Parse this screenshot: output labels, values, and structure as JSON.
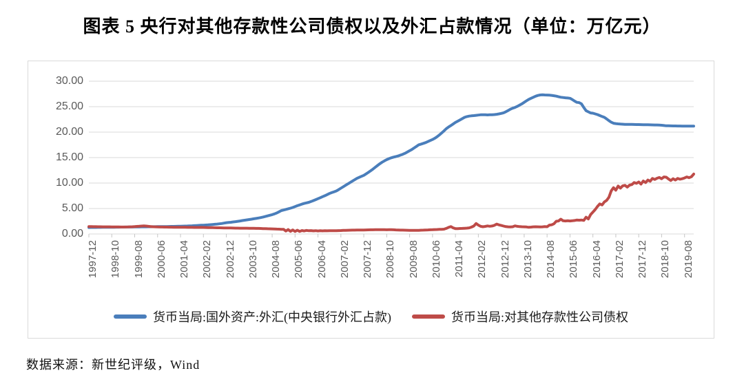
{
  "title": "图表 5  央行对其他存款性公司债权以及外汇占款情况（单位：万亿元）",
  "source_note": "数据来源：新世纪评级，Wind",
  "colors": {
    "fx_line": "#4a7ebb",
    "claims_line": "#be4b48",
    "gridline": "#d9d9d9",
    "tick": "#c6c6c6",
    "axis_text": "#595959",
    "panel_border": "#d9d9d9",
    "text": "#000000"
  },
  "chart_data": {
    "type": "line",
    "title": "央行对其他存款性公司债权以及外汇占款情况",
    "unit": "万亿元",
    "grid": true,
    "legend_position": "bottom",
    "y_axis": {
      "min": 0,
      "max": 30,
      "step": 5,
      "tick_labels": [
        "30.00",
        "25.00",
        "20.00",
        "15.00",
        "10.00",
        "5.00",
        "0.00"
      ]
    },
    "x_axis": {
      "interval": "monthly",
      "start": "1997-12",
      "end": "2019-12",
      "tick_every_n_points": 10,
      "tick_labels": [
        "1997-12",
        "1998-10",
        "1999-08",
        "2000-06",
        "2001-04",
        "2002-02",
        "2002-12",
        "2003-10",
        "2004-08",
        "2005-06",
        "2006-04",
        "2007-02",
        "2007-12",
        "2008-10",
        "2009-08",
        "2010-06",
        "2011-04",
        "2012-02",
        "2012-12",
        "2013-10",
        "2014-08",
        "2015-06",
        "2016-04",
        "2017-02",
        "2017-12",
        "2018-10",
        "2019-08"
      ]
    },
    "series": [
      {
        "name": "货币当局:国外资产:外汇(中央银行外汇占款)",
        "color": "#4a7ebb",
        "values": [
          1.27,
          1.28,
          1.29,
          1.29,
          1.3,
          1.3,
          1.31,
          1.31,
          1.32,
          1.32,
          1.33,
          1.33,
          1.34,
          1.34,
          1.35,
          1.35,
          1.36,
          1.36,
          1.37,
          1.37,
          1.38,
          1.38,
          1.39,
          1.4,
          1.41,
          1.41,
          1.42,
          1.42,
          1.43,
          1.43,
          1.44,
          1.44,
          1.45,
          1.45,
          1.46,
          1.47,
          1.48,
          1.49,
          1.5,
          1.51,
          1.52,
          1.54,
          1.55,
          1.57,
          1.59,
          1.61,
          1.63,
          1.66,
          1.69,
          1.71,
          1.73,
          1.76,
          1.79,
          1.82,
          1.86,
          1.9,
          1.95,
          2.0,
          2.06,
          2.13,
          2.21,
          2.25,
          2.3,
          2.36,
          2.42,
          2.49,
          2.56,
          2.63,
          2.7,
          2.77,
          2.84,
          2.91,
          2.98,
          3.05,
          3.13,
          3.22,
          3.32,
          3.43,
          3.55,
          3.67,
          3.8,
          3.94,
          4.12,
          4.35,
          4.59,
          4.7,
          4.82,
          4.95,
          5.07,
          5.2,
          5.38,
          5.55,
          5.7,
          5.86,
          6.0,
          6.11,
          6.21,
          6.38,
          6.56,
          6.75,
          6.93,
          7.12,
          7.32,
          7.52,
          7.73,
          7.95,
          8.12,
          8.28,
          8.44,
          8.7,
          8.98,
          9.27,
          9.55,
          9.83,
          10.1,
          10.38,
          10.65,
          10.92,
          11.12,
          11.32,
          11.52,
          11.8,
          12.1,
          12.42,
          12.75,
          13.1,
          13.45,
          13.8,
          14.1,
          14.35,
          14.6,
          14.8,
          14.96,
          15.1,
          15.2,
          15.32,
          15.48,
          15.65,
          15.85,
          16.1,
          16.35,
          16.6,
          16.9,
          17.2,
          17.52,
          17.65,
          17.8,
          17.95,
          18.15,
          18.35,
          18.55,
          18.8,
          19.1,
          19.45,
          19.85,
          20.25,
          20.68,
          21.0,
          21.3,
          21.6,
          21.9,
          22.15,
          22.4,
          22.65,
          22.9,
          23.05,
          23.15,
          23.2,
          23.24,
          23.3,
          23.35,
          23.4,
          23.42,
          23.4,
          23.38,
          23.4,
          23.42,
          23.45,
          23.5,
          23.58,
          23.67,
          23.8,
          24.0,
          24.25,
          24.5,
          24.7,
          24.85,
          25.05,
          25.3,
          25.55,
          25.85,
          26.15,
          26.43,
          26.65,
          26.85,
          27.05,
          27.2,
          27.3,
          27.32,
          27.3,
          27.28,
          27.25,
          27.22,
          27.15,
          27.07,
          26.95,
          26.85,
          26.8,
          26.75,
          26.7,
          26.65,
          26.41,
          26.1,
          25.85,
          25.8,
          25.56,
          24.85,
          24.21,
          23.98,
          23.77,
          23.71,
          23.58,
          23.45,
          23.26,
          23.07,
          22.9,
          22.6,
          22.26,
          21.94,
          21.74,
          21.68,
          21.62,
          21.58,
          21.55,
          21.53,
          21.52,
          21.51,
          21.51,
          21.5,
          21.49,
          21.48,
          21.47,
          21.46,
          21.45,
          21.44,
          21.43,
          21.42,
          21.41,
          21.4,
          21.38,
          21.35,
          21.3,
          21.25,
          21.24,
          21.23,
          21.22,
          21.21,
          21.2,
          21.2,
          21.19,
          21.19,
          21.18,
          21.18,
          21.17,
          21.17
        ]
      },
      {
        "name": "货币当局:对其他存款性公司债权",
        "color": "#be4b48",
        "values": [
          1.44,
          1.44,
          1.43,
          1.43,
          1.42,
          1.42,
          1.41,
          1.41,
          1.4,
          1.4,
          1.39,
          1.39,
          1.38,
          1.38,
          1.37,
          1.37,
          1.36,
          1.38,
          1.4,
          1.42,
          1.45,
          1.48,
          1.52,
          1.56,
          1.58,
          1.55,
          1.5,
          1.46,
          1.42,
          1.4,
          1.38,
          1.37,
          1.36,
          1.35,
          1.35,
          1.34,
          1.34,
          1.33,
          1.33,
          1.32,
          1.32,
          1.31,
          1.31,
          1.3,
          1.3,
          1.3,
          1.29,
          1.29,
          1.29,
          1.3,
          1.28,
          1.27,
          1.26,
          1.25,
          1.24,
          1.23,
          1.22,
          1.21,
          1.2,
          1.19,
          1.18,
          1.18,
          1.17,
          1.16,
          1.15,
          1.15,
          1.14,
          1.14,
          1.13,
          1.13,
          1.12,
          1.12,
          1.11,
          1.1,
          1.09,
          1.08,
          1.06,
          1.05,
          1.03,
          1.02,
          1.0,
          0.98,
          0.96,
          0.94,
          0.92,
          0.9,
          0.58,
          0.86,
          0.52,
          0.8,
          0.48,
          0.74,
          0.5,
          0.68,
          0.6,
          0.7,
          0.64,
          0.66,
          0.61,
          0.65,
          0.6,
          0.63,
          0.61,
          0.64,
          0.62,
          0.65,
          0.63,
          0.64,
          0.64,
          0.66,
          0.68,
          0.7,
          0.72,
          0.73,
          0.74,
          0.75,
          0.76,
          0.77,
          0.78,
          0.78,
          0.79,
          0.8,
          0.81,
          0.82,
          0.83,
          0.84,
          0.84,
          0.85,
          0.84,
          0.84,
          0.83,
          0.84,
          0.84,
          0.82,
          0.8,
          0.78,
          0.76,
          0.75,
          0.74,
          0.73,
          0.72,
          0.72,
          0.71,
          0.72,
          0.72,
          0.74,
          0.76,
          0.78,
          0.8,
          0.82,
          0.84,
          0.86,
          0.88,
          0.9,
          0.92,
          0.94,
          1.1,
          1.3,
          1.45,
          1.2,
          1.05,
          1.06,
          1.08,
          1.1,
          1.12,
          1.15,
          1.2,
          1.35,
          1.55,
          2.05,
          1.75,
          1.5,
          1.42,
          1.48,
          1.58,
          1.52,
          1.57,
          1.7,
          1.95,
          1.78,
          1.67,
          1.55,
          1.45,
          1.4,
          1.38,
          1.42,
          1.6,
          1.5,
          1.45,
          1.42,
          1.4,
          1.38,
          1.31,
          1.35,
          1.4,
          1.42,
          1.4,
          1.38,
          1.4,
          1.45,
          1.42,
          1.75,
          1.8,
          2.0,
          2.5,
          2.55,
          2.9,
          2.6,
          2.55,
          2.6,
          2.55,
          2.6,
          2.65,
          2.75,
          2.7,
          2.75,
          2.66,
          3.3,
          2.95,
          3.8,
          4.3,
          4.8,
          5.4,
          5.9,
          5.7,
          6.3,
          6.6,
          7.2,
          8.47,
          9.1,
          8.6,
          9.4,
          9.0,
          9.45,
          9.55,
          9.2,
          9.6,
          9.7,
          10.1,
          9.95,
          10.22,
          9.8,
          10.4,
          10.1,
          10.6,
          10.35,
          10.9,
          10.7,
          10.95,
          11.1,
          10.85,
          11.2,
          11.15,
          10.8,
          10.5,
          10.85,
          10.6,
          10.9,
          10.75,
          10.85,
          11.0,
          11.2,
          11.05,
          11.25,
          11.77
        ]
      }
    ]
  }
}
